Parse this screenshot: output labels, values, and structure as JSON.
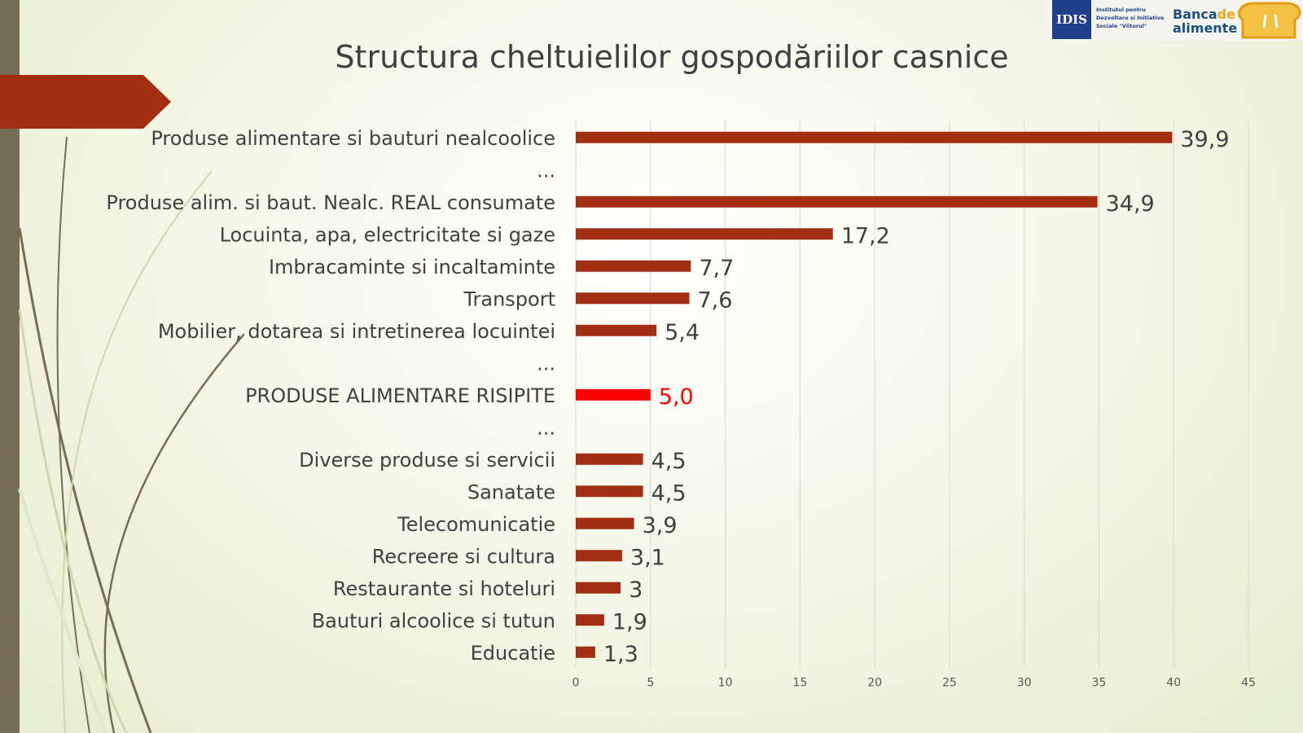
{
  "slide": {
    "title": "Structura cheltuielilor gospodăriilor casnice"
  },
  "logos": {
    "ids_mark": "IDIS",
    "ids_text": "Institutul pentru Dezvoltare și Inițiative Sociale \"Viitorul\"",
    "banca_prefix": "Banca",
    "banca_de": "de",
    "banca_suffix": "alimente"
  },
  "colors": {
    "bar": "#a32f12",
    "highlight": "#ff0000",
    "accent_tab": "#a32f12",
    "side_bar": "#756e55"
  },
  "chart_data": {
    "type": "bar",
    "orientation": "horizontal",
    "title": "",
    "xlim": [
      0,
      45
    ],
    "xticks": [
      "0",
      "5",
      "10",
      "15",
      "20",
      "25",
      "30",
      "35",
      "40",
      "45"
    ],
    "grid": true,
    "categories": [
      "Produse alimentare si bauturi nealcoolice",
      "...",
      "Produse alim. si baut. Nealc. REAL consumate",
      "Locuinta, apa, electricitate si gaze",
      "Imbracaminte si incaltaminte",
      "Transport",
      "Mobilier, dotarea si intretinerea locuintei",
      "...",
      "PRODUSE ALIMENTARE RISIPITE",
      "...",
      "Diverse produse si servicii",
      "Sanatate",
      "Telecomunicatie",
      "Recreere si cultura",
      "Restaurante si hoteluri",
      "Bauturi alcoolice si tutun",
      "Educatie"
    ],
    "values": [
      39.9,
      null,
      34.9,
      17.2,
      7.7,
      7.6,
      5.4,
      null,
      5.0,
      null,
      4.5,
      4.5,
      3.9,
      3.1,
      3,
      1.9,
      1.3
    ],
    "value_labels": [
      "39,9",
      "",
      "34,9",
      "17,2",
      "7,7",
      "7,6",
      "5,4",
      "",
      "5,0",
      "",
      "4,5",
      "4,5",
      "3,9",
      "3,1",
      "3",
      "1,9",
      "1,3"
    ],
    "highlight_index": 8
  }
}
